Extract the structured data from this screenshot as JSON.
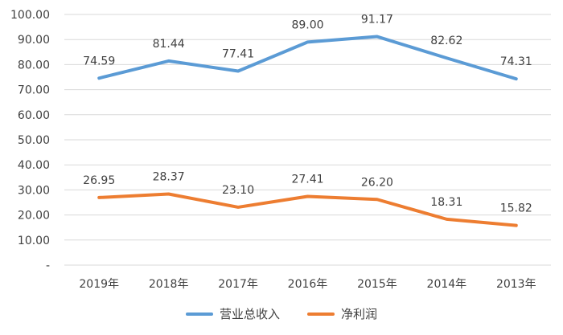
{
  "chart_data": {
    "type": "line",
    "categories": [
      "2019年",
      "2018年",
      "2017年",
      "2016年",
      "2015年",
      "2014年",
      "2013年"
    ],
    "series": [
      {
        "name": "营业总收入",
        "values": [
          74.59,
          81.44,
          77.41,
          89.0,
          91.17,
          82.62,
          74.31
        ],
        "color": "#5B9BD5"
      },
      {
        "name": "净利润",
        "values": [
          26.95,
          28.37,
          23.1,
          27.41,
          26.2,
          18.31,
          15.82
        ],
        "color": "#ED7D31"
      }
    ],
    "ylim": [
      0,
      100
    ],
    "yticks": [
      "-",
      "10.00",
      "20.00",
      "30.00",
      "40.00",
      "50.00",
      "60.00",
      "70.00",
      "80.00",
      "90.00",
      "100.00"
    ],
    "grid": true,
    "legend_position": "bottom"
  }
}
